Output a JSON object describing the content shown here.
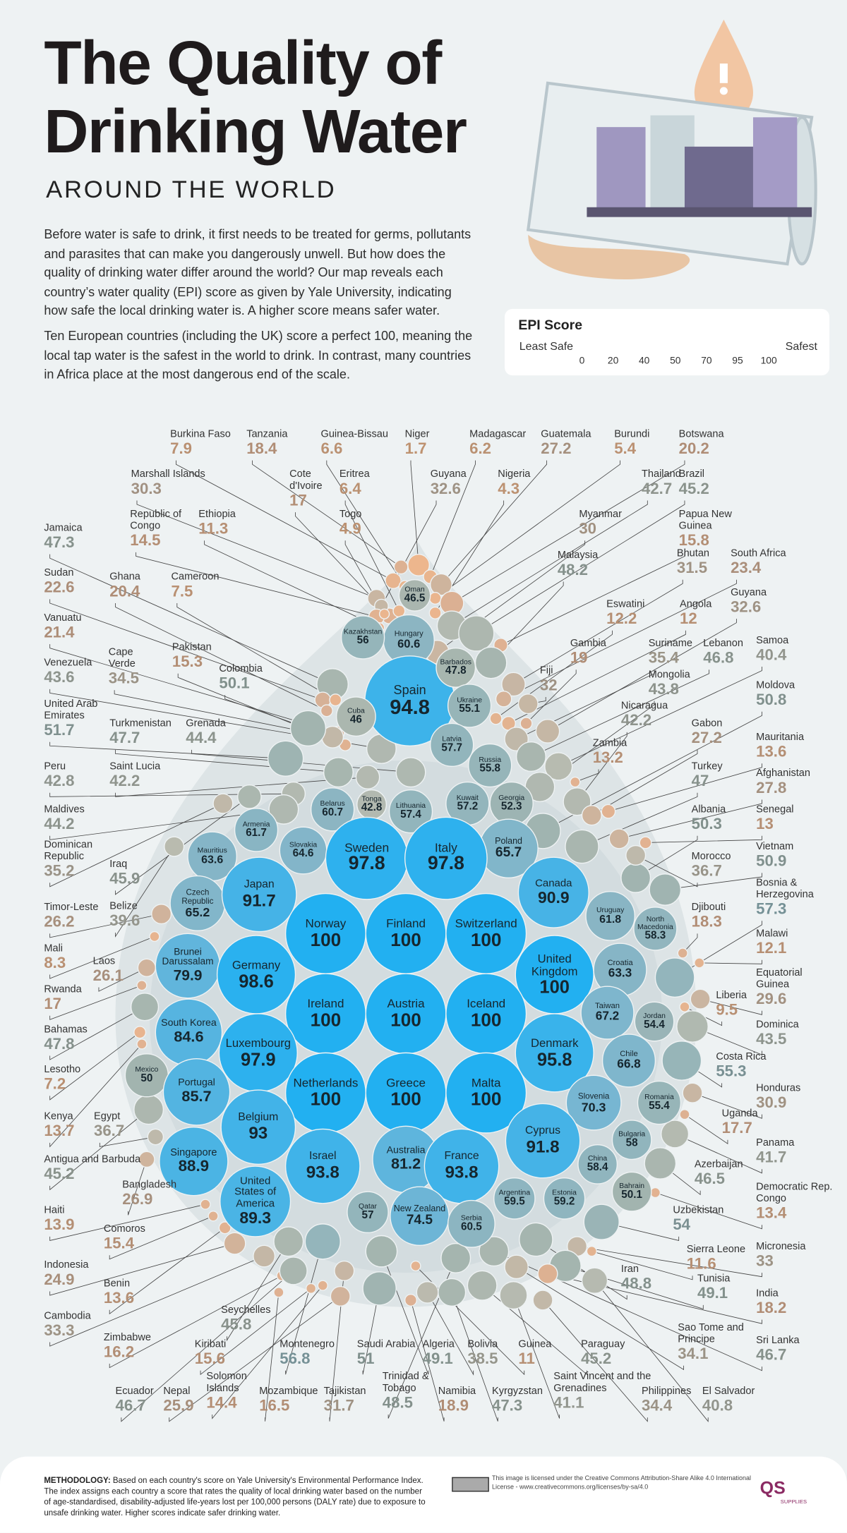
{
  "header": {
    "title_lines": [
      "The Quality of",
      "Drinking Water"
    ],
    "subtitle": "AROUND THE WORLD",
    "paragraphs": [
      "Before water is safe to drink, it first needs to be treated for germs, pollutants and parasites that can make you dangerously unwell. But how does the quality of drinking water differ around the world? Our map reveals each country’s water quality (EPI) score as given by Yale University, indicating how safe the local drinking water is. A higher score means safer water.",
      "Ten European countries (including the UK) score a perfect 100, meaning the local tap water is the safest in the world to drink. In contrast, many countries in Africa place at the most dangerous end of the scale."
    ]
  },
  "legend": {
    "title": "EPI Score",
    "low_label": "Least Safe",
    "high_label": "Safest",
    "ticks": [
      0,
      20,
      40,
      50,
      70,
      95,
      100
    ],
    "colors": [
      "#efb78c",
      "#dbb093",
      "#b8bbb0",
      "#a2b4af",
      "#78b6d2",
      "#3db3ea",
      "#22b0f1"
    ]
  },
  "map": {
    "bubbles": [
      {
        "name": "Oman",
        "score": 46.5
      },
      {
        "name": "Hungary",
        "score": 60.6
      },
      {
        "name": "Kazakhstan",
        "score": 56
      },
      {
        "name": "Spain",
        "score": 94.8
      },
      {
        "name": "Barbados",
        "score": 47.8
      },
      {
        "name": "Ukraine",
        "score": 55.1
      },
      {
        "name": "Cuba",
        "score": 46
      },
      {
        "name": "Latvia",
        "score": 57.7
      },
      {
        "name": "Russia",
        "score": 55.8
      },
      {
        "name": "Belarus",
        "score": 60.7
      },
      {
        "name": "Tonga",
        "score": 42.8
      },
      {
        "name": "Lithuania",
        "score": 57.4
      },
      {
        "name": "Kuwait",
        "score": 57.2
      },
      {
        "name": "Georgia",
        "score": 52.3
      },
      {
        "name": "Armenia",
        "score": 61.7
      },
      {
        "name": "Slovakia",
        "score": 64.6
      },
      {
        "name": "Poland",
        "score": 65.7
      },
      {
        "name": "Mauritius",
        "score": 63.6
      },
      {
        "name": "Sweden",
        "score": 97.8
      },
      {
        "name": "Italy",
        "score": 97.8
      },
      {
        "name": "Canada",
        "score": 90.9
      },
      {
        "name": "Czech Republic",
        "score": 65.2
      },
      {
        "name": "Japan",
        "score": 91.7
      },
      {
        "name": "Uruguay",
        "score": 61.8
      },
      {
        "name": "North Macedonia",
        "score": 58.3
      },
      {
        "name": "Norway",
        "score": 100
      },
      {
        "name": "Finland",
        "score": 100
      },
      {
        "name": "Switzerland",
        "score": 100
      },
      {
        "name": "Brunei Darussalam",
        "score": 79.9
      },
      {
        "name": "Germany",
        "score": 98.6
      },
      {
        "name": "United Kingdom",
        "score": 100
      },
      {
        "name": "Croatia",
        "score": 63.3
      },
      {
        "name": "Ireland",
        "score": 100
      },
      {
        "name": "Austria",
        "score": 100
      },
      {
        "name": "Iceland",
        "score": 100
      },
      {
        "name": "Taiwan",
        "score": 67.2
      },
      {
        "name": "Jordan",
        "score": 54.4
      },
      {
        "name": "South Korea",
        "score": 84.6
      },
      {
        "name": "Luxembourg",
        "score": 97.9
      },
      {
        "name": "Denmark",
        "score": 95.8
      },
      {
        "name": "Chile",
        "score": 66.8
      },
      {
        "name": "Mexico",
        "score": 50
      },
      {
        "name": "Portugal",
        "score": 85.7
      },
      {
        "name": "Netherlands",
        "score": 100
      },
      {
        "name": "Greece",
        "score": 100
      },
      {
        "name": "Malta",
        "score": 100
      },
      {
        "name": "Slovenia",
        "score": 70.3
      },
      {
        "name": "Romania",
        "score": 55.4
      },
      {
        "name": "Belgium",
        "score": 93
      },
      {
        "name": "Bulgaria",
        "score": 58
      },
      {
        "name": "Cyprus",
        "score": 91.8
      },
      {
        "name": "China",
        "score": 58.4
      },
      {
        "name": "Singapore",
        "score": 88.9
      },
      {
        "name": "Israel",
        "score": 93.8
      },
      {
        "name": "Australia",
        "score": 81.2
      },
      {
        "name": "France",
        "score": 93.8
      },
      {
        "name": "Bahrain",
        "score": 50.1
      },
      {
        "name": "Argentina",
        "score": 59.5
      },
      {
        "name": "Estonia",
        "score": 59.2
      },
      {
        "name": "United States of America",
        "score": 89.3
      },
      {
        "name": "Qatar",
        "score": 57
      },
      {
        "name": "New Zealand",
        "score": 74.5
      },
      {
        "name": "Serbia",
        "score": 60.5
      }
    ],
    "callouts": [
      {
        "name": "Burkina Faso",
        "score": 7.9
      },
      {
        "name": "Tanzania",
        "score": 18.4
      },
      {
        "name": "Guinea-Bissau",
        "score": 6.6
      },
      {
        "name": "Niger",
        "score": 1.7
      },
      {
        "name": "Madagascar",
        "score": 6.2
      },
      {
        "name": "Guatemala",
        "score": 27.2
      },
      {
        "name": "Burundi",
        "score": 5.4
      },
      {
        "name": "Botswana",
        "score": 20.2
      },
      {
        "name": "Marshall Islands",
        "score": 30.3
      },
      {
        "name": "Cote d'Ivoire",
        "score": 17
      },
      {
        "name": "Eritrea",
        "score": 6.4
      },
      {
        "name": "Guyana",
        "score": 32.6
      },
      {
        "name": "Nigeria",
        "score": 4.3
      },
      {
        "name": "Thailand",
        "score": 42.7
      },
      {
        "name": "Brazil",
        "score": 45.2
      },
      {
        "name": "Republic of Congo",
        "score": 14.5
      },
      {
        "name": "Ethiopia",
        "score": 11.3
      },
      {
        "name": "Togo",
        "score": 4.9
      },
      {
        "name": "Myanmar",
        "score": 30
      },
      {
        "name": "Papua New Guinea",
        "score": 15.8
      },
      {
        "name": "Jamaica",
        "score": 47.3
      },
      {
        "name": "Malaysia",
        "score": 48.2
      },
      {
        "name": "Bhutan",
        "score": 31.5
      },
      {
        "name": "South Africa",
        "score": 23.4
      },
      {
        "name": "Sudan",
        "score": 22.6
      },
      {
        "name": "Ghana",
        "score": 20.4
      },
      {
        "name": "Cameroon",
        "score": 7.5
      },
      {
        "name": "Eswatini",
        "score": 12.2
      },
      {
        "name": "Angola",
        "score": 12
      },
      {
        "name": "Guyana",
        "score": 32.6
      },
      {
        "name": "Vanuatu",
        "score": 21.4
      },
      {
        "name": "Gambia",
        "score": 19
      },
      {
        "name": "Suriname",
        "score": 35.4
      },
      {
        "name": "Lebanon",
        "score": 46.8
      },
      {
        "name": "Samoa",
        "score": 40.4
      },
      {
        "name": "Pakistan",
        "score": 15.3
      },
      {
        "name": "Fiji",
        "score": 32
      },
      {
        "name": "Venezuela",
        "score": 43.6
      },
      {
        "name": "Cape Verde",
        "score": 34.5
      },
      {
        "name": "Colombia",
        "score": 50.1
      },
      {
        "name": "Mongolia",
        "score": 43.8
      },
      {
        "name": "Moldova",
        "score": 50.8
      },
      {
        "name": "United Arab Emirates",
        "score": 51.7
      },
      {
        "name": "Turkmenistan",
        "score": 47.7
      },
      {
        "name": "Grenada",
        "score": 44.4
      },
      {
        "name": "Nicaragua",
        "score": 42.2
      },
      {
        "name": "Zambia",
        "score": 13.2
      },
      {
        "name": "Gabon",
        "score": 27.2
      },
      {
        "name": "Mauritania",
        "score": 13.6
      },
      {
        "name": "Peru",
        "score": 42.8
      },
      {
        "name": "Saint Lucia",
        "score": 42.2
      },
      {
        "name": "Turkey",
        "score": 47
      },
      {
        "name": "Afghanistan",
        "score": 27.8
      },
      {
        "name": "Maldives",
        "score": 44.2
      },
      {
        "name": "Albania",
        "score": 50.3
      },
      {
        "name": "Senegal",
        "score": 13
      },
      {
        "name": "Dominican Republic",
        "score": 35.2
      },
      {
        "name": "Iraq",
        "score": 45.9
      },
      {
        "name": "Vietnam",
        "score": 50.9
      },
      {
        "name": "Morocco",
        "score": 36.7
      },
      {
        "name": "Belize",
        "score": 39.6
      },
      {
        "name": "Timor-Leste",
        "score": 26.2
      },
      {
        "name": "Djibouti",
        "score": 18.3
      },
      {
        "name": "Bosnia & Herzegovina",
        "score": 57.3
      },
      {
        "name": "Mali",
        "score": 8.3
      },
      {
        "name": "Laos",
        "score": 26.1
      },
      {
        "name": "Malawi",
        "score": 12.1
      },
      {
        "name": "Rwanda",
        "score": 17
      },
      {
        "name": "Equatorial Guinea",
        "score": 29.6
      },
      {
        "name": "Liberia",
        "score": 9.5
      },
      {
        "name": "Bahamas",
        "score": 47.8
      },
      {
        "name": "Dominica",
        "score": 43.5
      },
      {
        "name": "Lesotho",
        "score": 7.2
      },
      {
        "name": "Costa Rica",
        "score": 55.3
      },
      {
        "name": "Kenya",
        "score": 13.7
      },
      {
        "name": "Egypt",
        "score": 36.7
      },
      {
        "name": "Honduras",
        "score": 30.9
      },
      {
        "name": "Uganda",
        "score": 17.7
      },
      {
        "name": "Antigua and Barbuda",
        "score": 45.2
      },
      {
        "name": "Panama",
        "score": 41.7
      },
      {
        "name": "Bangladesh",
        "score": 26.9
      },
      {
        "name": "Azerbaijan",
        "score": 46.5
      },
      {
        "name": "Haiti",
        "score": 13.9
      },
      {
        "name": "Democratic Rep. Congo",
        "score": 13.4
      },
      {
        "name": "Comoros",
        "score": 15.4
      },
      {
        "name": "Uzbekistan",
        "score": 54
      },
      {
        "name": "Indonesia",
        "score": 24.9
      },
      {
        "name": "Micronesia",
        "score": 33
      },
      {
        "name": "Sierra Leone",
        "score": 11.6
      },
      {
        "name": "Benin",
        "score": 13.6
      },
      {
        "name": "Iran",
        "score": 48.8
      },
      {
        "name": "Tunisia",
        "score": 49.1
      },
      {
        "name": "Cambodia",
        "score": 33.3
      },
      {
        "name": "India",
        "score": 18.2
      },
      {
        "name": "Seychelles",
        "score": 45.8
      },
      {
        "name": "Zimbabwe",
        "score": 16.2
      },
      {
        "name": "Sao Tome and Principe",
        "score": 34.1
      },
      {
        "name": "Sri Lanka",
        "score": 46.7
      },
      {
        "name": "Kiribati",
        "score": 15.6
      },
      {
        "name": "Montenegro",
        "score": 56.8
      },
      {
        "name": "Saudi Arabia",
        "score": 51
      },
      {
        "name": "Algeria",
        "score": 49.1
      },
      {
        "name": "Bolivia",
        "score": 38.5
      },
      {
        "name": "Guinea",
        "score": 11
      },
      {
        "name": "Paraguay",
        "score": 45.2
      },
      {
        "name": "Ecuador",
        "score": 46.7
      },
      {
        "name": "Nepal",
        "score": 25.9
      },
      {
        "name": "Solomon Islands",
        "score": 14.4
      },
      {
        "name": "Mozambique",
        "score": 16.5
      },
      {
        "name": "Tajikistan",
        "score": 31.7
      },
      {
        "name": "Trinidad & Tobago",
        "score": 48.5
      },
      {
        "name": "Namibia",
        "score": 18.9
      },
      {
        "name": "Kyrgyzstan",
        "score": 47.3
      },
      {
        "name": "Saint Vincent and the Grenadines",
        "score": 41.1
      },
      {
        "name": "Philippines",
        "score": 34.4
      },
      {
        "name": "El Salvador",
        "score": 40.8
      }
    ]
  },
  "footer": {
    "methodology_label": "METHODOLOGY:",
    "methodology": "Based on each country's score on Yale University's Environmental Performance Index. The index assigns each country a score that rates the quality of local drinking water based on the number of age-standardised, disability-adjusted life-years lost per 100,000 persons (DALY rate) due to exposure to unsafe drinking water. Higher scores indicate safer drinking water.",
    "license": "This image is licensed under the Creative Commons Attribution-Share Alike 4.0 International License - www.creativecommons.org/licenses/by-sa/4.0",
    "logo": "QS",
    "logo_sub": "SUPPLIES"
  }
}
